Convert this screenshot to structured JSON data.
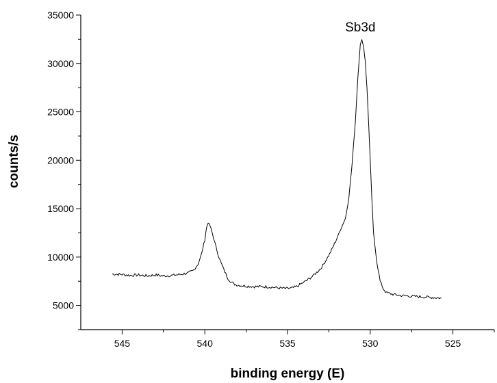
{
  "chart_data": {
    "type": "line",
    "title": "",
    "xlabel": "binding energy (E)",
    "ylabel": "counts/s",
    "xlim": [
      547.5,
      522.5
    ],
    "x_reversed": true,
    "ylim": [
      2500,
      35000
    ],
    "x_ticks": [
      545,
      540,
      535,
      530,
      525
    ],
    "y_ticks": [
      5000,
      10000,
      15000,
      20000,
      25000,
      30000,
      35000
    ],
    "grid": false,
    "legend": "none",
    "annotations": [
      {
        "text": "Sb3d",
        "x": 530.6,
        "y": 33300
      }
    ],
    "series": [
      {
        "color": "#000000",
        "points": [
          [
            545.6,
            8250
          ],
          [
            545.0,
            8200
          ],
          [
            544.5,
            8100
          ],
          [
            544.0,
            8150
          ],
          [
            543.5,
            8050
          ],
          [
            543.0,
            8150
          ],
          [
            542.5,
            8050
          ],
          [
            542.0,
            8100
          ],
          [
            541.5,
            8200
          ],
          [
            541.0,
            8350
          ],
          [
            540.7,
            8600
          ],
          [
            540.4,
            9300
          ],
          [
            540.2,
            10300
          ],
          [
            540.0,
            11800
          ],
          [
            539.9,
            13000
          ],
          [
            539.8,
            13550
          ],
          [
            539.7,
            13300
          ],
          [
            539.6,
            12800
          ],
          [
            539.4,
            11500
          ],
          [
            539.2,
            10300
          ],
          [
            539.0,
            9300
          ],
          [
            538.8,
            8500
          ],
          [
            538.6,
            7800
          ],
          [
            538.4,
            7400
          ],
          [
            538.2,
            7200
          ],
          [
            538.0,
            7100
          ],
          [
            537.5,
            7000
          ],
          [
            537.0,
            6950
          ],
          [
            536.5,
            6950
          ],
          [
            536.0,
            6900
          ],
          [
            535.5,
            6800
          ],
          [
            535.0,
            6750
          ],
          [
            534.7,
            6800
          ],
          [
            534.4,
            7000
          ],
          [
            534.0,
            7400
          ],
          [
            533.5,
            8000
          ],
          [
            533.0,
            8800
          ],
          [
            532.7,
            9600
          ],
          [
            532.4,
            10500
          ],
          [
            532.1,
            11600
          ],
          [
            531.8,
            12800
          ],
          [
            531.5,
            14000
          ],
          [
            531.3,
            16000
          ],
          [
            531.1,
            19500
          ],
          [
            530.9,
            24000
          ],
          [
            530.75,
            28500
          ],
          [
            530.6,
            32000
          ],
          [
            530.5,
            32400
          ],
          [
            530.4,
            31800
          ],
          [
            530.3,
            30200
          ],
          [
            530.2,
            27500
          ],
          [
            530.1,
            24000
          ],
          [
            530.0,
            20000
          ],
          [
            529.9,
            16000
          ],
          [
            529.8,
            12500
          ],
          [
            529.6,
            9500
          ],
          [
            529.4,
            7500
          ],
          [
            529.2,
            6700
          ],
          [
            529.0,
            6300
          ],
          [
            528.5,
            6100
          ],
          [
            528.0,
            6000
          ],
          [
            527.5,
            5950
          ],
          [
            527.0,
            5900
          ],
          [
            526.5,
            5850
          ],
          [
            526.0,
            5800
          ],
          [
            525.7,
            5750
          ]
        ]
      }
    ]
  }
}
